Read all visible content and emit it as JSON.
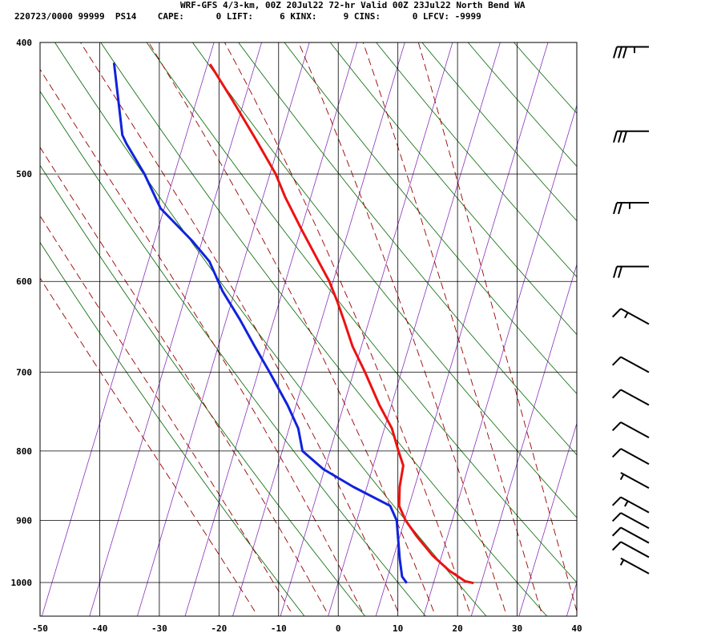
{
  "header": {
    "title": "WRF-GFS 4/3-km, 00Z 20Jul22 72-hr Valid 00Z 23Jul22 North Bend WA",
    "info": "220723/0000 99999  PS14    CAPE:      0 LIFT:     6 KINX:     9 CINS:      0 LFCV: -9999"
  },
  "chart_data": {
    "type": "line",
    "xlabel": "",
    "ylabel": "",
    "xlim": [
      -50,
      40
    ],
    "ylim_pressure": [
      1040,
      400
    ],
    "x_ticks": [
      -50,
      -40,
      -30,
      -20,
      -10,
      0,
      10,
      20,
      30,
      40
    ],
    "x_tick_labels": [
      "-50",
      "-40",
      "-30",
      "-20",
      "-10",
      "0",
      "10",
      "20",
      "30",
      "40"
    ],
    "p_ticks": [
      400,
      500,
      600,
      700,
      800,
      900,
      1000
    ],
    "p_tick_labels": [
      "400",
      "500",
      "600",
      "700",
      "800",
      "900",
      "1000"
    ],
    "grid": true,
    "colors": {
      "temperature": "#ee1111",
      "dewpoint": "#1122dd",
      "dry_adiabat": "#006600",
      "moist_adiabat": "#990000",
      "isotherm_skew": "#8833bb",
      "grid": "#000000",
      "wind_barb": "#000000"
    },
    "series": [
      {
        "key": "temperature",
        "points": [
          {
            "p": 1001,
            "x": 22.7
          },
          {
            "p": 998,
            "x": 21.3
          },
          {
            "p": 980,
            "x": 18.6
          },
          {
            "p": 955,
            "x": 15.8
          },
          {
            "p": 925,
            "x": 13.2
          },
          {
            "p": 900,
            "x": 11.3
          },
          {
            "p": 878,
            "x": 10.2
          },
          {
            "p": 850,
            "x": 10.3
          },
          {
            "p": 820,
            "x": 10.9
          },
          {
            "p": 800,
            "x": 10.1
          },
          {
            "p": 770,
            "x": 9.0
          },
          {
            "p": 740,
            "x": 6.9
          },
          {
            "p": 700,
            "x": 4.5
          },
          {
            "p": 670,
            "x": 2.4
          },
          {
            "p": 640,
            "x": 0.9
          },
          {
            "p": 620,
            "x": -0.2
          },
          {
            "p": 600,
            "x": -1.5
          },
          {
            "p": 580,
            "x": -3.3
          },
          {
            "p": 550,
            "x": -6.1
          },
          {
            "p": 520,
            "x": -8.9
          },
          {
            "p": 500,
            "x": -10.5
          },
          {
            "p": 470,
            "x": -14.0
          },
          {
            "p": 440,
            "x": -17.9
          },
          {
            "p": 415,
            "x": -21.5
          }
        ]
      },
      {
        "key": "dewpoint",
        "points": [
          {
            "p": 1001,
            "x": 11.5
          },
          {
            "p": 990,
            "x": 10.7
          },
          {
            "p": 960,
            "x": 10.3
          },
          {
            "p": 900,
            "x": 9.8
          },
          {
            "p": 878,
            "x": 8.7
          },
          {
            "p": 850,
            "x": 2.5
          },
          {
            "p": 825,
            "x": -2.5
          },
          {
            "p": 800,
            "x": -6.0
          },
          {
            "p": 770,
            "x": -6.7
          },
          {
            "p": 740,
            "x": -8.5
          },
          {
            "p": 700,
            "x": -11.5
          },
          {
            "p": 670,
            "x": -14.0
          },
          {
            "p": 640,
            "x": -16.5
          },
          {
            "p": 610,
            "x": -19.4
          },
          {
            "p": 580,
            "x": -21.6
          },
          {
            "p": 560,
            "x": -24.5
          },
          {
            "p": 530,
            "x": -29.8
          },
          {
            "p": 500,
            "x": -32.5
          },
          {
            "p": 475,
            "x": -35.5
          },
          {
            "p": 468,
            "x": -36.2
          },
          {
            "p": 440,
            "x": -36.9
          },
          {
            "p": 414,
            "x": -37.6
          }
        ]
      }
    ],
    "dry_adiabats_theta_C": [
      -10,
      0,
      10,
      20,
      30,
      40,
      50,
      60,
      70,
      80,
      90,
      100,
      110,
      120
    ],
    "moist_adiabats_thetae_C": [
      -14,
      -8,
      -2,
      4,
      10,
      16,
      22,
      28,
      34,
      40
    ],
    "skew_lines_C": [
      -48,
      -40,
      -32,
      -24,
      -16,
      -8,
      0,
      8,
      16,
      24,
      32,
      40,
      48
    ],
    "wind_barbs": [
      {
        "p": 403,
        "speed_kt": 35
      },
      {
        "p": 465,
        "speed_kt": 30
      },
      {
        "p": 525,
        "speed_kt": 25
      },
      {
        "p": 585,
        "speed_kt": 20
      },
      {
        "p": 645,
        "speed_kt": 15
      },
      {
        "p": 700,
        "speed_kt": 10
      },
      {
        "p": 740,
        "speed_kt": 10
      },
      {
        "p": 782,
        "speed_kt": 10
      },
      {
        "p": 818,
        "speed_kt": 10
      },
      {
        "p": 852,
        "speed_kt": 5
      },
      {
        "p": 888,
        "speed_kt": 15
      },
      {
        "p": 912,
        "speed_kt": 10
      },
      {
        "p": 935,
        "speed_kt": 10
      },
      {
        "p": 958,
        "speed_kt": 10
      },
      {
        "p": 985,
        "speed_kt": 5
      }
    ]
  }
}
